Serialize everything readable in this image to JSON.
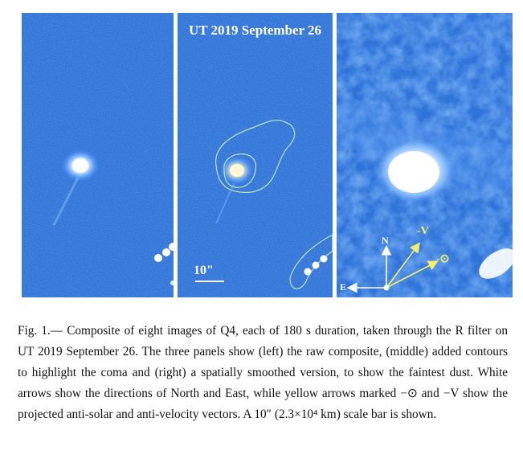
{
  "figure": {
    "panel_title": "UT 2019 September 26",
    "scale_bar_label": "10\"",
    "arrows": {
      "north_label": "N",
      "east_label": "E",
      "anti_velocity_label": "-V",
      "anti_solar_label": "-⊙"
    },
    "colors": {
      "background_blue": "#2c6fd6",
      "nucleus": "#ffffff",
      "arrow_white": "#ffffff",
      "arrow_yellow": "#f5ef6a",
      "contour": "#b9e6b4"
    }
  },
  "caption": {
    "text": "Fig. 1.— Composite of eight images of Q4, each of 180 s duration, taken through the R filter on UT 2019 September 26. The three panels show (left) the raw composite, (middle) added contours to highlight the coma and (right) a spatially smoothed version, to show the faintest dust. White arrows show the directions of North and East, while yellow arrows marked −⊙ and −V show the projected anti-solar and anti-velocity vectors. A 10″ (2.3×10⁴ km) scale bar is shown."
  }
}
